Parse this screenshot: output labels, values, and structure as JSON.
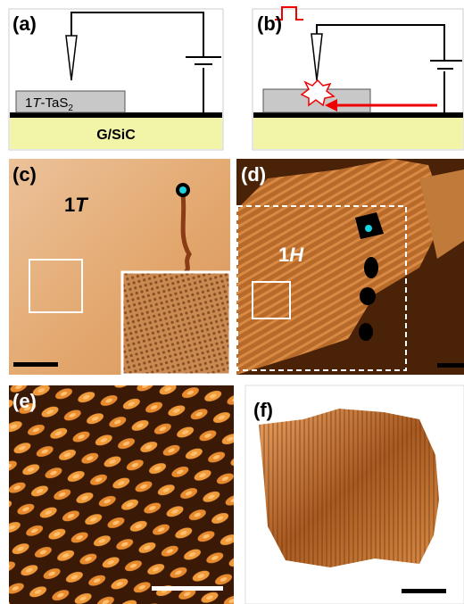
{
  "panels": {
    "a": {
      "label": "(a)",
      "sample": {
        "prefix": "1",
        "italic": "T",
        "suffix": "-TaS",
        "subscript": "2"
      },
      "substrate": "G/SiC"
    },
    "b": {
      "label": "(b)"
    },
    "c": {
      "label": "(c)",
      "phase": {
        "number": "1",
        "italic": "T"
      }
    },
    "d": {
      "label": "(d)",
      "phase": {
        "number": "1",
        "italic": "H"
      }
    },
    "e": {
      "label": "(e)"
    },
    "f": {
      "label": "(f)"
    }
  }
}
